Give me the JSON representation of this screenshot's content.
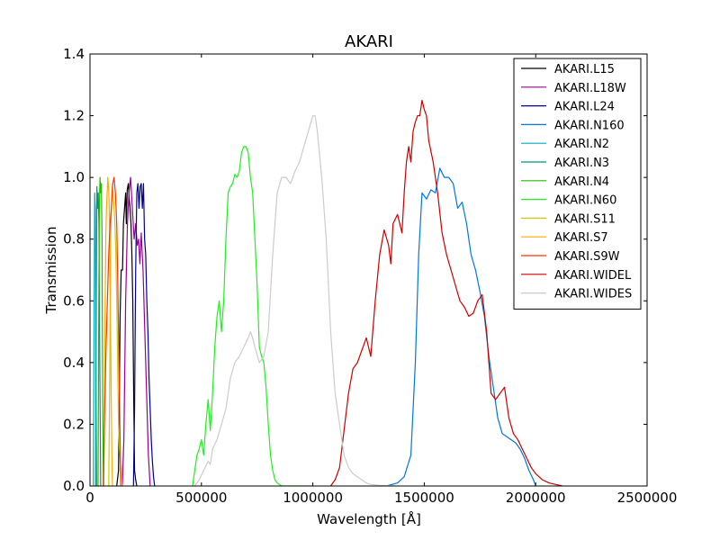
{
  "chart_data": {
    "type": "line",
    "title": "AKARI",
    "xlabel": "Wavelength [Å]",
    "ylabel": "Transmission",
    "xlim": [
      0,
      2500000
    ],
    "ylim": [
      0,
      1.4
    ],
    "xticks": [
      0,
      500000,
      1000000,
      1500000,
      2000000,
      2500000
    ],
    "xtick_labels": [
      "0",
      "500000",
      "1000000",
      "1500000",
      "2000000",
      "2500000"
    ],
    "yticks": [
      0,
      0.2,
      0.4,
      0.6,
      0.8,
      1.0,
      1.2,
      1.4
    ],
    "ytick_labels": [
      "0.0",
      "0.2",
      "0.4",
      "0.6",
      "0.8",
      "1.0",
      "1.2",
      "1.4"
    ],
    "grid": false,
    "legend_position": "top-right",
    "series": [
      {
        "name": "AKARI.L15",
        "color": "#000000",
        "x": [
          120000,
          128000,
          135000,
          140000,
          146000,
          150000,
          155000,
          160000,
          163000,
          167000,
          172000,
          176000,
          180000,
          184000,
          188000,
          192000,
          196000,
          200000,
          205000,
          210000
        ],
        "y": [
          0.0,
          0.05,
          0.55,
          0.7,
          0.7,
          0.85,
          0.9,
          0.95,
          0.85,
          0.96,
          0.98,
          0.93,
          0.9,
          0.85,
          0.75,
          0.6,
          0.3,
          0.05,
          0.02,
          0.0
        ]
      },
      {
        "name": "AKARI.L18W",
        "color": "#990099",
        "x": [
          145000,
          152000,
          160000,
          168000,
          175000,
          182000,
          190000,
          198000,
          205000,
          212000,
          218000,
          224000,
          230000,
          238000,
          246000,
          254000,
          262000,
          270000
        ],
        "y": [
          0.0,
          0.15,
          0.6,
          0.85,
          0.95,
          1.0,
          0.9,
          0.8,
          0.85,
          0.78,
          0.8,
          0.72,
          0.82,
          0.7,
          0.5,
          0.3,
          0.1,
          0.0
        ]
      },
      {
        "name": "AKARI.L24",
        "color": "#000099",
        "x": [
          195000,
          200000,
          205000,
          210000,
          215000,
          220000,
          225000,
          230000,
          235000,
          240000,
          245000,
          250000,
          255000,
          260000,
          265000,
          270000,
          275000,
          280000,
          285000,
          290000
        ],
        "y": [
          0.0,
          0.25,
          0.7,
          0.95,
          0.98,
          0.9,
          0.97,
          0.98,
          0.9,
          0.98,
          0.8,
          0.75,
          0.6,
          0.5,
          0.35,
          0.25,
          0.15,
          0.08,
          0.03,
          0.0
        ]
      },
      {
        "name": "AKARI.N160",
        "color": "#0077dd",
        "x": [
          1330000,
          1380000,
          1410000,
          1440000,
          1460000,
          1475000,
          1490000,
          1510000,
          1530000,
          1550000,
          1570000,
          1590000,
          1610000,
          1630000,
          1650000,
          1670000,
          1690000,
          1710000,
          1730000,
          1750000,
          1770000,
          1790000,
          1810000,
          1830000,
          1850000,
          1870000,
          1890000,
          1910000,
          1930000,
          1950000,
          1970000,
          1990000,
          2000000
        ],
        "y": [
          0.0,
          0.01,
          0.03,
          0.1,
          0.4,
          0.75,
          0.95,
          0.93,
          0.96,
          0.95,
          1.03,
          1.0,
          1.0,
          0.98,
          0.9,
          0.92,
          0.85,
          0.75,
          0.7,
          0.63,
          0.55,
          0.42,
          0.32,
          0.22,
          0.17,
          0.16,
          0.15,
          0.14,
          0.12,
          0.09,
          0.05,
          0.02,
          0.0
        ]
      },
      {
        "name": "AKARI.N2",
        "color": "#00aacc",
        "x": [
          15000,
          18000,
          21000,
          24000,
          27000,
          30000
        ],
        "y": [
          0.0,
          0.5,
          0.95,
          0.9,
          0.3,
          0.0
        ]
      },
      {
        "name": "AKARI.N3",
        "color": "#009977",
        "x": [
          25000,
          28000,
          31000,
          34000,
          37000,
          40000,
          44000,
          48000
        ],
        "y": [
          0.0,
          0.6,
          0.97,
          0.9,
          0.95,
          0.85,
          0.4,
          0.0
        ]
      },
      {
        "name": "AKARI.N4",
        "color": "#22bb00",
        "x": [
          36000,
          39000,
          42000,
          45000,
          48000,
          51000,
          54000,
          57000,
          60000
        ],
        "y": [
          0.0,
          0.5,
          0.9,
          1.0,
          0.95,
          0.98,
          0.8,
          0.3,
          0.0
        ]
      },
      {
        "name": "AKARI.N60",
        "color": "#22ee22",
        "x": [
          460000,
          470000,
          480000,
          490000,
          500000,
          510000,
          520000,
          530000,
          540000,
          550000,
          560000,
          570000,
          580000,
          590000,
          600000,
          610000,
          620000,
          630000,
          640000,
          650000,
          660000,
          670000,
          680000,
          690000,
          700000,
          710000,
          720000,
          730000,
          740000,
          750000,
          760000,
          770000,
          780000,
          790000,
          800000,
          810000,
          820000,
          830000,
          840000,
          860000,
          880000,
          900000,
          930000,
          960000,
          1000000
        ],
        "y": [
          0.0,
          0.05,
          0.1,
          0.12,
          0.15,
          0.1,
          0.2,
          0.28,
          0.18,
          0.3,
          0.45,
          0.55,
          0.6,
          0.5,
          0.6,
          0.8,
          0.95,
          0.97,
          0.98,
          1.01,
          1.0,
          1.02,
          1.08,
          1.1,
          1.1,
          1.08,
          1.0,
          0.95,
          0.8,
          0.65,
          0.45,
          0.42,
          0.4,
          0.32,
          0.2,
          0.1,
          0.05,
          0.02,
          0.01,
          0.0,
          0.0,
          0.0,
          0.0,
          0.0,
          0.0
        ]
      },
      {
        "name": "AKARI.S11",
        "color": "#cccc00",
        "x": [
          84000,
          88000,
          92000,
          96000,
          100000,
          104000,
          108000,
          112000,
          116000,
          120000,
          124000,
          128000,
          132000,
          136000,
          140000,
          144000
        ],
        "y": [
          0.0,
          0.3,
          0.75,
          0.9,
          0.97,
          0.95,
          0.9,
          0.85,
          0.75,
          0.6,
          0.4,
          0.2,
          0.12,
          0.08,
          0.05,
          0.0
        ]
      },
      {
        "name": "AKARI.S7",
        "color": "#ffaa00",
        "x": [
          62000,
          65000,
          68000,
          71000,
          74000,
          77000,
          80000,
          83000,
          86000,
          89000,
          92000,
          95000,
          98000,
          101000
        ],
        "y": [
          0.0,
          0.25,
          0.6,
          0.8,
          0.9,
          0.95,
          1.0,
          0.97,
          0.92,
          0.8,
          0.55,
          0.3,
          0.1,
          0.0
        ]
      },
      {
        "name": "AKARI.S9W",
        "color": "#ff3300",
        "x": [
          60000,
          66000,
          72000,
          78000,
          84000,
          90000,
          96000,
          102000,
          108000,
          114000,
          120000,
          126000,
          132000,
          138000
        ],
        "y": [
          0.0,
          0.25,
          0.45,
          0.6,
          0.75,
          0.85,
          0.9,
          0.98,
          1.0,
          0.95,
          0.85,
          0.6,
          0.3,
          0.0
        ]
      },
      {
        "name": "AKARI.WIDEL",
        "color": "#cc0000",
        "x": [
          1080000,
          1100000,
          1120000,
          1140000,
          1160000,
          1180000,
          1200000,
          1220000,
          1240000,
          1260000,
          1280000,
          1300000,
          1320000,
          1340000,
          1350000,
          1360000,
          1380000,
          1400000,
          1410000,
          1420000,
          1430000,
          1440000,
          1450000,
          1460000,
          1470000,
          1480000,
          1490000,
          1500000,
          1510000,
          1520000,
          1540000,
          1560000,
          1580000,
          1600000,
          1620000,
          1640000,
          1660000,
          1680000,
          1700000,
          1720000,
          1740000,
          1760000,
          1780000,
          1800000,
          1820000,
          1840000,
          1860000,
          1880000,
          1900000,
          1920000,
          1940000,
          1960000,
          1980000,
          2000000,
          2030000,
          2060000,
          2090000,
          2120000
        ],
        "y": [
          0.0,
          0.02,
          0.06,
          0.18,
          0.3,
          0.38,
          0.4,
          0.44,
          0.48,
          0.42,
          0.6,
          0.75,
          0.83,
          0.78,
          0.72,
          0.85,
          0.88,
          0.82,
          0.95,
          1.05,
          1.1,
          1.05,
          1.15,
          1.18,
          1.2,
          1.2,
          1.25,
          1.22,
          1.2,
          1.12,
          1.05,
          0.95,
          0.82,
          0.75,
          0.7,
          0.65,
          0.6,
          0.58,
          0.55,
          0.56,
          0.6,
          0.62,
          0.5,
          0.3,
          0.28,
          0.3,
          0.32,
          0.22,
          0.17,
          0.15,
          0.12,
          0.09,
          0.06,
          0.04,
          0.02,
          0.01,
          0.005,
          0.0
        ]
      },
      {
        "name": "AKARI.WIDES",
        "color": "#cccccc",
        "x": [
          470000,
          490000,
          510000,
          530000,
          540000,
          550000,
          570000,
          590000,
          610000,
          630000,
          650000,
          670000,
          690000,
          710000,
          720000,
          730000,
          740000,
          760000,
          780000,
          800000,
          820000,
          840000,
          860000,
          880000,
          900000,
          920000,
          940000,
          960000,
          980000,
          1000000,
          1010000,
          1020000,
          1040000,
          1060000,
          1080000,
          1100000,
          1120000,
          1140000,
          1160000,
          1180000,
          1200000,
          1220000,
          1240000,
          1260000,
          1300000,
          1340000,
          1380000
        ],
        "y": [
          0.0,
          0.02,
          0.05,
          0.08,
          0.07,
          0.12,
          0.15,
          0.2,
          0.25,
          0.35,
          0.4,
          0.42,
          0.45,
          0.48,
          0.5,
          0.48,
          0.45,
          0.4,
          0.42,
          0.5,
          0.75,
          0.95,
          1.0,
          1.0,
          0.98,
          1.02,
          1.05,
          1.1,
          1.15,
          1.2,
          1.2,
          1.15,
          1.0,
          0.8,
          0.5,
          0.3,
          0.2,
          0.1,
          0.06,
          0.04,
          0.03,
          0.02,
          0.01,
          0.005,
          0.002,
          0.001,
          0.0
        ]
      }
    ]
  }
}
